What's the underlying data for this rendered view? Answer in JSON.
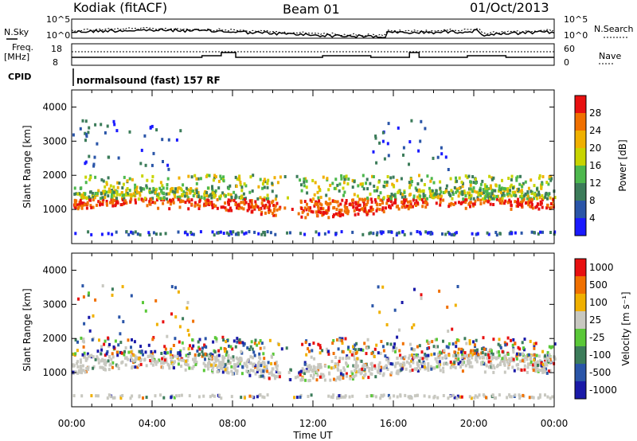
{
  "header": {
    "station": "Kodiak (fitACF)",
    "beam": "Beam 01",
    "date": "01/Oct/2013"
  },
  "side_labels": {
    "nsky": "N.Sky",
    "nsky_hi": "10^5",
    "nsky_lo": "10^0",
    "freq": "Freq.",
    "freq_unit": "[MHz]",
    "freq_hi": "18",
    "freq_lo": "8",
    "cpid": "CPID",
    "nsearch": "N.Search",
    "nsearch_hi": "10^5",
    "nsearch_lo": "10^0",
    "nave": "Nave",
    "nave_hi": "60",
    "nave_lo": "0"
  },
  "cpid_text": "normalsound (fast) 157 RF",
  "chart_data": [
    {
      "type": "heatmap",
      "name": "power",
      "ylabel": "Slant Range [km]",
      "ylim": [
        0,
        4500
      ],
      "yticks": [
        "1000",
        "2000",
        "3000",
        "4000"
      ],
      "colorbar_label": "Power [dB]",
      "colorbar_ticks": [
        "4",
        "8",
        "12",
        "16",
        "20",
        "24",
        "28"
      ],
      "colorbar_colors": [
        "#1a1aff",
        "#2a55a8",
        "#3c7c5a",
        "#4db84d",
        "#c8d400",
        "#f0b000",
        "#f07000",
        "#e81010"
      ]
    },
    {
      "type": "heatmap",
      "name": "velocity",
      "ylabel": "Slant Range [km]",
      "ylim": [
        0,
        4500
      ],
      "yticks": [
        "1000",
        "2000",
        "3000",
        "4000"
      ],
      "colorbar_label": "Velocity [m s⁻¹]",
      "colorbar_ticks": [
        "1000",
        "500",
        "100",
        "25",
        "-25",
        "-100",
        "-500",
        "-1000"
      ],
      "colorbar_colors": [
        "#1a1aa8",
        "#2a55a8",
        "#3c7c5a",
        "#5ac838",
        "#c8c8c0",
        "#f0b000",
        "#f07000",
        "#e81010"
      ]
    }
  ],
  "xaxis": {
    "ticks": [
      "00:00",
      "04:00",
      "08:00",
      "12:00",
      "16:00",
      "20:00",
      "00:00"
    ],
    "label": "Time UT"
  },
  "colors": {
    "red": "#e81010",
    "orange": "#f07000",
    "yellow": "#c8d400",
    "green": "#4db84d",
    "blue": "#1a1aff",
    "grey": "#c8c8c0"
  }
}
